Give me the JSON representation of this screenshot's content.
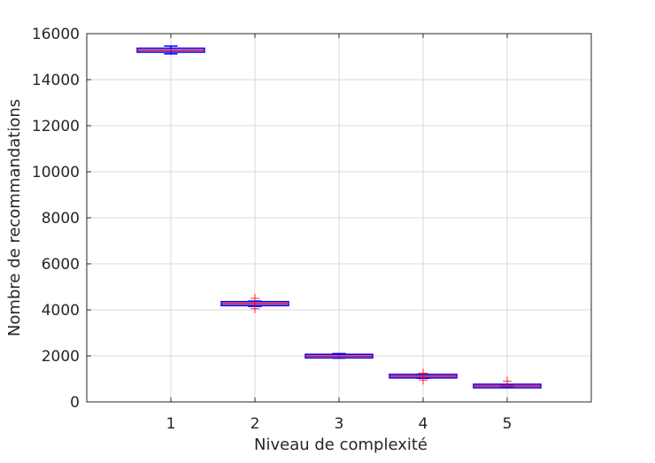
{
  "chart_data": {
    "type": "box",
    "xlabel": "Niveau de complexité",
    "ylabel": "Nombre de recommandations",
    "xlim": [
      0,
      6
    ],
    "ylim": [
      0,
      16000
    ],
    "categories": [
      "1",
      "2",
      "3",
      "4",
      "5"
    ],
    "yticks": [
      "0",
      "2000",
      "4000",
      "6000",
      "8000",
      "10000",
      "12000",
      "14000",
      "16000"
    ],
    "grid": true,
    "colors": {
      "box": "#0000ff",
      "median": "#ff0000",
      "outlier": "#ff0000"
    },
    "boxes": [
      {
        "median": 15280,
        "q1": 15250,
        "q3": 15310,
        "whisker_low": 15120,
        "whisker_high": 15460,
        "outliers": []
      },
      {
        "median": 4270,
        "q1": 4240,
        "q3": 4300,
        "whisker_low": 4150,
        "whisker_high": 4380,
        "outliers": [
          4500,
          4050
        ]
      },
      {
        "median": 1990,
        "q1": 1970,
        "q3": 2010,
        "whisker_low": 1900,
        "whisker_high": 2100,
        "outliers": []
      },
      {
        "median": 1120,
        "q1": 1100,
        "q3": 1140,
        "whisker_low": 1030,
        "whisker_high": 1200,
        "outliers": [
          1250,
          950
        ]
      },
      {
        "median": 690,
        "q1": 670,
        "q3": 710,
        "whisker_low": 640,
        "whisker_high": 750,
        "outliers": [
          900
        ]
      }
    ]
  }
}
